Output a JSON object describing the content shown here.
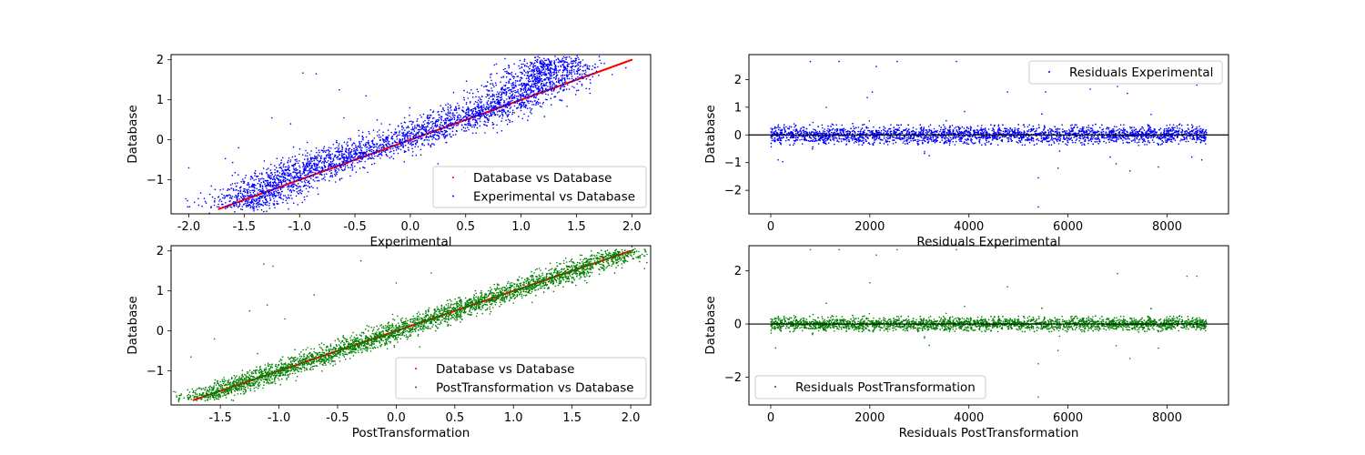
{
  "chart_data": [
    {
      "type": "scatter",
      "xlabel": "Experimental",
      "ylabel": "Database",
      "xlim": [
        -2.16,
        2.17
      ],
      "ylim": [
        -1.85,
        2.13
      ],
      "xticks": [
        "-2.0",
        "-1.5",
        "-1.0",
        "-0.5",
        "0.0",
        "0.5",
        "1.0",
        "1.5",
        "2.0"
      ],
      "xtick_values": [
        -2.0,
        -1.5,
        -1.0,
        -0.5,
        0.0,
        0.5,
        1.0,
        1.5,
        2.0
      ],
      "yticks": [
        "−1",
        "0",
        "1",
        "2"
      ],
      "ytick_values": [
        -1,
        0,
        1,
        2
      ],
      "legend_position": "lower right",
      "series": [
        {
          "name": "Database vs Database",
          "color": "#ff0000",
          "kind": "identity",
          "x_range": [
            -1.73,
            2.0
          ],
          "n_points": 8800
        },
        {
          "name": "Experimental vs Database",
          "color": "#0000ff",
          "kind": "sigmoid_cloud",
          "x_range": [
            -2.0,
            1.7
          ],
          "y_range": [
            -1.7,
            2.0
          ],
          "spread": 0.15,
          "n_points": 8800,
          "outliers": [
            [
              -0.97,
              1.67
            ],
            [
              -0.85,
              1.65
            ],
            [
              -0.64,
              1.25
            ],
            [
              -1.25,
              0.55
            ],
            [
              -0.4,
              1.1
            ],
            [
              -0.6,
              0.55
            ],
            [
              -1.55,
              -0.2
            ],
            [
              -2.0,
              -0.7
            ],
            [
              -1.08,
              0.4
            ],
            [
              -0.3,
              0.5
            ],
            [
              0.5,
              -0.8
            ],
            [
              0.25,
              -0.6
            ]
          ]
        }
      ]
    },
    {
      "type": "scatter",
      "xlabel": "Residuals Experimental",
      "ylabel": "Database",
      "xlim": [
        -440,
        9240
      ],
      "ylim": [
        -2.85,
        2.9
      ],
      "xticks": [
        "0",
        "2000",
        "4000",
        "6000",
        "8000"
      ],
      "xtick_values": [
        0,
        2000,
        4000,
        6000,
        8000
      ],
      "yticks": [
        "−2",
        "−1",
        "0",
        "1",
        "2"
      ],
      "ytick_values": [
        -2,
        -1,
        0,
        1,
        2
      ],
      "hline": 0,
      "legend_position": "upper right",
      "series": [
        {
          "name": "Residuals Experimental",
          "color": "#0000ff",
          "kind": "residual_band",
          "x_range": [
            0,
            8800
          ],
          "band": 0.28,
          "n_points": 8800,
          "outliers": [
            [
              800,
              2.65
            ],
            [
              1380,
              2.65
            ],
            [
              2130,
              2.47
            ],
            [
              2550,
              2.65
            ],
            [
              3750,
              2.65
            ],
            [
              2050,
              1.55
            ],
            [
              1950,
              1.35
            ],
            [
              4780,
              1.55
            ],
            [
              5550,
              1.55
            ],
            [
              6450,
              1.65
            ],
            [
              7000,
              1.75
            ],
            [
              8600,
              1.8
            ],
            [
              7200,
              1.5
            ],
            [
              5400,
              -2.6
            ],
            [
              5400,
              -1.55
            ],
            [
              5800,
              -1.2
            ],
            [
              7250,
              -1.3
            ],
            [
              8500,
              -0.8
            ],
            [
              150,
              -0.9
            ],
            [
              3200,
              -0.75
            ],
            [
              6850,
              -0.8
            ],
            [
              8700,
              -0.9
            ]
          ]
        }
      ]
    },
    {
      "type": "scatter",
      "xlabel": "PostTransformation",
      "ylabel": "Database",
      "xlim": [
        -1.92,
        2.17
      ],
      "ylim": [
        -1.85,
        2.13
      ],
      "xticks": [
        "-1.5",
        "-1.0",
        "-0.5",
        "0.0",
        "0.5",
        "1.0",
        "1.5",
        "2.0"
      ],
      "xtick_values": [
        -1.5,
        -1.0,
        -0.5,
        0.0,
        0.5,
        1.0,
        1.5,
        2.0
      ],
      "yticks": [
        "−1",
        "0",
        "1",
        "2"
      ],
      "ytick_values": [
        -1,
        0,
        1,
        2
      ],
      "legend_position": "lower right",
      "series": [
        {
          "name": "Database vs Database",
          "color": "#ff0000",
          "kind": "identity",
          "x_range": [
            -1.73,
            2.0
          ],
          "n_points": 8800
        },
        {
          "name": "PostTransformation vs Database",
          "color": "#008000",
          "kind": "linear_cloud",
          "x_range": [
            -1.73,
            1.8
          ],
          "y_range": [
            -1.7,
            2.0
          ],
          "spread": 0.12,
          "n_points": 8800,
          "outliers": [
            [
              -1.13,
              1.67
            ],
            [
              -1.05,
              1.62
            ],
            [
              -1.25,
              0.5
            ],
            [
              -0.3,
              1.75
            ],
            [
              0.0,
              1.2
            ],
            [
              -0.7,
              0.9
            ],
            [
              0.3,
              1.45
            ],
            [
              -1.55,
              -0.2
            ],
            [
              -1.75,
              -0.65
            ],
            [
              0.2,
              -0.4
            ],
            [
              -1.1,
              0.65
            ],
            [
              -0.95,
              0.3
            ]
          ]
        }
      ]
    },
    {
      "type": "scatter",
      "xlabel": "Residuals PostTransformation",
      "ylabel": "Database",
      "xlim": [
        -440,
        9240
      ],
      "ylim": [
        -3.05,
        2.95
      ],
      "xticks": [
        "0",
        "2000",
        "4000",
        "6000",
        "8000"
      ],
      "xtick_values": [
        0,
        2000,
        4000,
        6000,
        8000
      ],
      "yticks": [
        "−2",
        "0",
        "2"
      ],
      "ytick_values": [
        -2,
        0,
        2
      ],
      "hline": 0,
      "legend_position": "lower left",
      "series": [
        {
          "name": "Residuals PostTransformation",
          "color": "#008000",
          "kind": "residual_band",
          "x_range": [
            0,
            8800
          ],
          "band": 0.22,
          "n_points": 8800,
          "outliers": [
            [
              800,
              2.8
            ],
            [
              1380,
              2.8
            ],
            [
              2130,
              2.6
            ],
            [
              2550,
              2.8
            ],
            [
              3750,
              2.8
            ],
            [
              2000,
              1.55
            ],
            [
              7000,
              1.9
            ],
            [
              8600,
              1.8
            ],
            [
              8400,
              1.8
            ],
            [
              4780,
              1.4
            ],
            [
              5400,
              -2.75
            ],
            [
              5400,
              -1.5
            ],
            [
              7250,
              -1.3
            ],
            [
              100,
              -0.9
            ],
            [
              5800,
              -1.0
            ],
            [
              3200,
              -0.8
            ]
          ]
        }
      ]
    }
  ]
}
